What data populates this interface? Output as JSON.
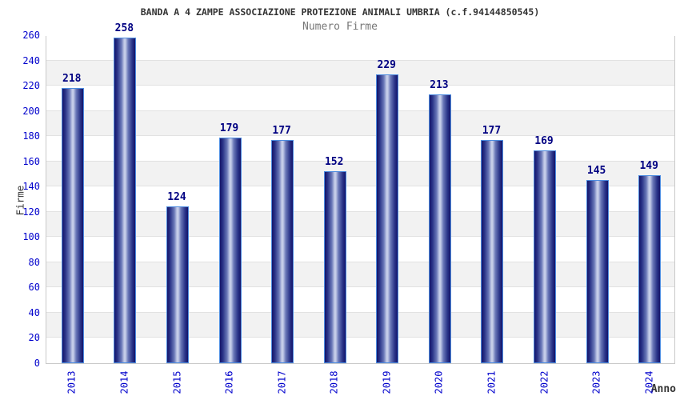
{
  "title": "BANDA A 4 ZAMPE ASSOCIAZIONE PROTEZIONE ANIMALI UMBRIA (c.f.94144850545)",
  "subtitle": "Numero Firme",
  "chart_data": {
    "type": "bar",
    "title": "BANDA A 4 ZAMPE ASSOCIAZIONE PROTEZIONE ANIMALI UMBRIA (c.f.94144850545)",
    "subtitle": "Numero Firme",
    "categories": [
      "2013",
      "2014",
      "2015",
      "2016",
      "2017",
      "2018",
      "2019",
      "2020",
      "2021",
      "2022",
      "2023",
      "2024"
    ],
    "values": [
      218,
      258,
      124,
      179,
      177,
      152,
      229,
      213,
      177,
      169,
      145,
      149
    ],
    "xlabel": "Anno",
    "ylabel": "Firme",
    "ylim": [
      0,
      260
    ],
    "ytick_step": 20,
    "yticks": [
      0,
      20,
      40,
      60,
      80,
      100,
      120,
      140,
      160,
      180,
      200,
      220,
      240,
      260
    ],
    "legend": "none",
    "grid": "horizontal alternating bands every 20 units",
    "bar_style": "vertical cylinder gradient, dark navy edges with light center highlight",
    "colors": {
      "bar_edge_dark": "#14146a",
      "bar_mid": "#2a3488",
      "bar_inner": "#6a78b8",
      "bar_center_light": "#c4cce8",
      "bar_border": "#4d8ce0",
      "tick_label": "#0000cc",
      "value_label": "#000082",
      "band_white": "#ffffff",
      "band_gray": "#f2f2f2",
      "gridline": "#e2e2e2",
      "plot_border": "#c9c9c9",
      "title_color": "#333333",
      "subtitle_color": "#777777",
      "axis_title_color": "#333333"
    }
  }
}
